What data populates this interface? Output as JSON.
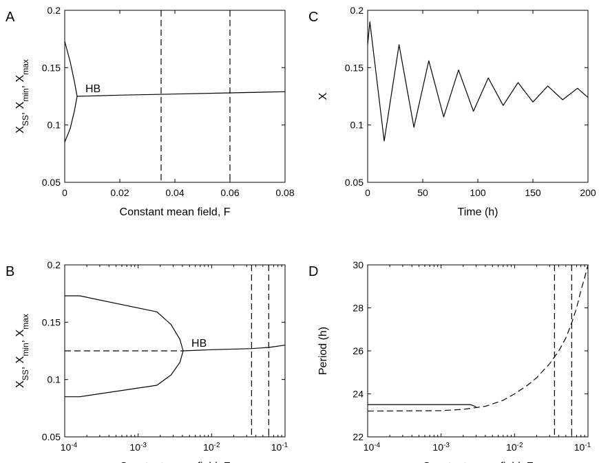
{
  "chart_data": [
    {
      "panel": "A",
      "type": "line",
      "xlabel": "Constant mean field, F",
      "ylabel": "X_SS, X_min, X_max",
      "xscale": "linear",
      "xlim": [
        0,
        0.08
      ],
      "ylim": [
        0.05,
        0.2
      ],
      "xticks": [
        0,
        0.02,
        0.04,
        0.06,
        0.08
      ],
      "xticklabels": [
        "0",
        "0.02",
        "0.04",
        "0.06",
        "0.08"
      ],
      "yticks": [
        0.05,
        0.1,
        0.15,
        0.2
      ],
      "yticklabels": [
        "0.05",
        "0.1",
        "0.15",
        "0.2"
      ],
      "series": [
        {
          "style": "solid",
          "x": [
            0,
            0.002,
            0.0035,
            0.0045,
            0.0035,
            0.002,
            0
          ],
          "y": [
            0.173,
            0.155,
            0.138,
            0.125,
            0.112,
            0.097,
            0.085
          ]
        },
        {
          "style": "solid",
          "x": [
            0.0045,
            0.02,
            0.04,
            0.06,
            0.08
          ],
          "y": [
            0.125,
            0.126,
            0.127,
            0.128,
            0.129
          ]
        }
      ],
      "vlines": [
        0.035,
        0.06
      ],
      "annotations": [
        {
          "text": "HB",
          "x": 0.0045,
          "y": 0.125
        }
      ]
    },
    {
      "panel": "B",
      "type": "line",
      "xlabel": "Constant mean field, F",
      "ylabel": "X_SS, X_min, X_max",
      "xscale": "log",
      "xlim": [
        0.0001,
        0.1
      ],
      "ylim": [
        0.05,
        0.2
      ],
      "xticks": [
        0.0001,
        0.001,
        0.01,
        0.1
      ],
      "xtick_exponents": [
        "-4",
        "-3",
        "-2",
        "-1"
      ],
      "yticks": [
        0.05,
        0.1,
        0.15,
        0.2
      ],
      "yticklabels": [
        "0.05",
        "0.1",
        "0.15",
        "0.2"
      ],
      "series": [
        {
          "style": "solid",
          "x": [
            0.0001,
            0.00016,
            0.0018,
            0.0028,
            0.0037,
            0.0041,
            0.0037,
            0.0028,
            0.0018,
            0.00016,
            0.0001
          ],
          "y": [
            0.173,
            0.173,
            0.159,
            0.148,
            0.135,
            0.125,
            0.115,
            0.104,
            0.095,
            0.085,
            0.085
          ]
        },
        {
          "style": "dashed",
          "x": [
            0.0001,
            0.0041
          ],
          "y": [
            0.125,
            0.125
          ]
        },
        {
          "style": "solid",
          "x": [
            0.0041,
            0.01,
            0.035,
            0.06,
            0.1
          ],
          "y": [
            0.125,
            0.126,
            0.127,
            0.128,
            0.13
          ]
        }
      ],
      "vlines": [
        0.035,
        0.06
      ],
      "annotations": [
        {
          "text": "HB",
          "x": 0.0041,
          "y": 0.125
        }
      ]
    },
    {
      "panel": "C",
      "type": "line",
      "xlabel": "Time (h)",
      "ylabel": "X",
      "xscale": "linear",
      "xlim": [
        0,
        200
      ],
      "ylim": [
        0.05,
        0.2
      ],
      "xticks": [
        0,
        50,
        100,
        150,
        200
      ],
      "xticklabels": [
        "0",
        "50",
        "100",
        "150",
        "200"
      ],
      "yticks": [
        0.05,
        0.1,
        0.15,
        0.2
      ],
      "yticklabels": [
        "0.05",
        "0.1",
        "0.15",
        "0.2"
      ],
      "series": [
        {
          "style": "solid",
          "x": [
            0,
            2,
            15,
            28.5,
            42,
            55.5,
            69,
            82.5,
            96,
            109.5,
            123,
            136.5,
            150,
            163.5,
            177,
            190.5,
            200
          ],
          "y": [
            0.17,
            0.19,
            0.086,
            0.17,
            0.098,
            0.156,
            0.107,
            0.148,
            0.112,
            0.141,
            0.117,
            0.137,
            0.12,
            0.134,
            0.122,
            0.132,
            0.124
          ]
        }
      ]
    },
    {
      "panel": "D",
      "type": "line",
      "xlabel": "Constant mean field, F",
      "ylabel": "Period (h)",
      "xscale": "log",
      "xlim": [
        0.0001,
        0.1
      ],
      "ylim": [
        22,
        30
      ],
      "xticks": [
        0.0001,
        0.001,
        0.01,
        0.1
      ],
      "xtick_exponents": [
        "-4",
        "-3",
        "-2",
        "-1"
      ],
      "yticks": [
        22,
        24,
        26,
        28,
        30
      ],
      "yticklabels": [
        "22",
        "24",
        "26",
        "28",
        "30"
      ],
      "series": [
        {
          "style": "solid",
          "x": [
            0.0001,
            0.001,
            0.0025,
            0.003
          ],
          "y": [
            23.5,
            23.5,
            23.5,
            23.4
          ]
        },
        {
          "style": "dashed",
          "x": [
            0.0001,
            0.001,
            0.002,
            0.004,
            0.007,
            0.01,
            0.015,
            0.02,
            0.03,
            0.04,
            0.05,
            0.06,
            0.07,
            0.08,
            0.09,
            0.1
          ],
          "y": [
            23.2,
            23.22,
            23.28,
            23.42,
            23.7,
            24.0,
            24.4,
            24.75,
            25.4,
            26.0,
            26.6,
            27.3,
            28.0,
            28.8,
            29.4,
            30.0
          ]
        }
      ],
      "vlines": [
        0.035,
        0.06
      ]
    }
  ]
}
